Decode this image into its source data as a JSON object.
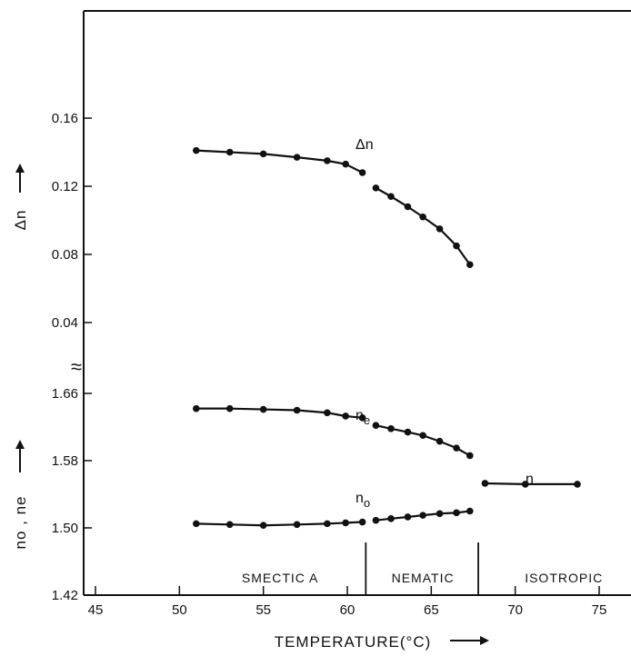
{
  "chart_data": {
    "type": "line",
    "xlabel": "TEMPERATURE(°C)",
    "xlim": [
      43,
      77
    ],
    "x_ticks": [
      45,
      50,
      55,
      60,
      65,
      70,
      75
    ],
    "panels": [
      {
        "ylabel": "Δn",
        "ylim": [
          0.0,
          0.2
        ],
        "y_ticks": [
          0.04,
          0.08,
          0.12,
          0.16
        ],
        "y_tick_labels": [
          "0.04",
          "0.08",
          "0.12",
          "0.16"
        ],
        "series": [
          {
            "name": "Δn",
            "segments": [
              {
                "x": [
                  51.0,
                  53.0,
                  55.0,
                  57.0,
                  58.8,
                  59.9,
                  60.9
                ],
                "y": [
                  0.141,
                  0.14,
                  0.139,
                  0.137,
                  0.135,
                  0.133,
                  0.128
                ]
              },
              {
                "x": [
                  61.7,
                  62.6,
                  63.6,
                  64.5,
                  65.5,
                  66.5,
                  67.3
                ],
                "y": [
                  0.119,
                  0.114,
                  0.108,
                  0.102,
                  0.095,
                  0.085,
                  0.074
                ]
              }
            ]
          }
        ]
      },
      {
        "ylabel": "no , ne",
        "ylim": [
          1.42,
          1.72
        ],
        "y_ticks": [
          1.42,
          1.5,
          1.58,
          1.66
        ],
        "y_tick_labels": [
          "1.42",
          "1.50",
          "1.58",
          "1.66"
        ],
        "series": [
          {
            "name": "ne",
            "segments": [
              {
                "x": [
                  51.0,
                  53.0,
                  55.0,
                  57.0,
                  58.8,
                  59.9,
                  60.9
                ],
                "y": [
                  1.642,
                  1.642,
                  1.641,
                  1.64,
                  1.637,
                  1.633,
                  1.631
                ]
              },
              {
                "x": [
                  61.7,
                  62.6,
                  63.6,
                  64.5,
                  65.5,
                  66.5,
                  67.3
                ],
                "y": [
                  1.622,
                  1.618,
                  1.614,
                  1.61,
                  1.603,
                  1.595,
                  1.586
                ]
              }
            ]
          },
          {
            "name": "no",
            "segments": [
              {
                "x": [
                  51.0,
                  53.0,
                  55.0,
                  57.0,
                  58.8,
                  59.9,
                  60.9
                ],
                "y": [
                  1.505,
                  1.504,
                  1.503,
                  1.504,
                  1.505,
                  1.506,
                  1.507
                ]
              },
              {
                "x": [
                  61.7,
                  62.6,
                  63.6,
                  64.5,
                  65.5,
                  66.5,
                  67.3
                ],
                "y": [
                  1.509,
                  1.511,
                  1.513,
                  1.515,
                  1.517,
                  1.518,
                  1.52
                ]
              }
            ]
          },
          {
            "name": "n",
            "segments": [
              {
                "x": [
                  68.2,
                  70.6,
                  73.7
                ],
                "y": [
                  1.553,
                  1.552,
                  1.552
                ]
              }
            ]
          }
        ]
      }
    ],
    "phase_boundaries": [
      61.1,
      67.8
    ],
    "phases": [
      {
        "label": "SMECTIC A",
        "center": 56.0
      },
      {
        "label": "NEMATIC",
        "center": 64.5
      },
      {
        "label": "ISOTROPIC",
        "center": 72.9
      }
    ],
    "axis_break_symbol": "≈",
    "grid": false
  }
}
